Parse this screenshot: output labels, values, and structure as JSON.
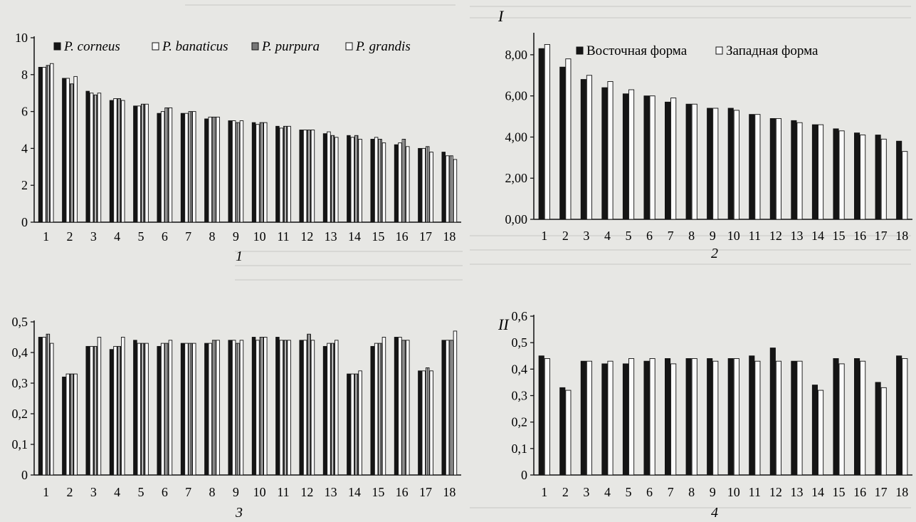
{
  "colors": {
    "paper": "#e7e7e4",
    "ink": "#111111",
    "black_fill": "#151515",
    "white_fill": "#fafafa",
    "hatch_fill": "#8a8a8a"
  },
  "chart_data": [
    {
      "id": "panel-1",
      "type": "bar",
      "panel_label": "1",
      "subpanel_label": "",
      "categories": [
        "1",
        "2",
        "3",
        "4",
        "5",
        "6",
        "7",
        "8",
        "9",
        "10",
        "11",
        "12",
        "13",
        "14",
        "15",
        "16",
        "17",
        "18"
      ],
      "yticks": [
        "0",
        "2",
        "4",
        "6",
        "8",
        "10"
      ],
      "ylim": [
        0,
        10
      ],
      "legend": "top-left",
      "series": [
        {
          "name": "P. corneus",
          "style": "black",
          "values": [
            8.4,
            7.8,
            7.1,
            6.6,
            6.3,
            5.9,
            5.9,
            5.6,
            5.5,
            5.4,
            5.2,
            5.0,
            4.8,
            4.7,
            4.5,
            4.2,
            4.0,
            3.8
          ]
        },
        {
          "name": "P. banaticus",
          "style": "white",
          "values": [
            8.4,
            7.8,
            7.0,
            6.7,
            6.3,
            6.0,
            5.9,
            5.7,
            5.5,
            5.3,
            5.1,
            5.0,
            4.9,
            4.6,
            4.6,
            4.3,
            4.0,
            3.6
          ]
        },
        {
          "name": "P. purpura",
          "style": "hatch",
          "values": [
            8.5,
            7.5,
            6.9,
            6.7,
            6.4,
            6.2,
            6.0,
            5.7,
            5.4,
            5.4,
            5.2,
            5.0,
            4.7,
            4.7,
            4.5,
            4.5,
            4.1,
            3.6
          ]
        },
        {
          "name": "P. grandis",
          "style": "white",
          "values": [
            8.6,
            7.9,
            7.0,
            6.6,
            6.4,
            6.2,
            6.0,
            5.7,
            5.5,
            5.4,
            5.2,
            5.0,
            4.6,
            4.5,
            4.3,
            4.1,
            3.8,
            3.4
          ]
        }
      ]
    },
    {
      "id": "panel-2",
      "type": "bar",
      "panel_label": "2",
      "subpanel_label": "I",
      "categories": [
        "1",
        "2",
        "3",
        "4",
        "5",
        "6",
        "7",
        "8",
        "9",
        "10",
        "11",
        "12",
        "13",
        "14",
        "15",
        "16",
        "17",
        "18"
      ],
      "yticks": [
        "0,00",
        "2,00",
        "4,00",
        "6,00",
        "8,00"
      ],
      "ylim": [
        0,
        9
      ],
      "legend": "top-right",
      "series": [
        {
          "name": "Восточная форма",
          "style": "black",
          "values": [
            8.3,
            7.4,
            6.8,
            6.4,
            6.1,
            6.0,
            5.7,
            5.6,
            5.4,
            5.4,
            5.1,
            4.9,
            4.8,
            4.6,
            4.4,
            4.2,
            4.1,
            3.8
          ]
        },
        {
          "name": "Западная форма",
          "style": "white",
          "values": [
            8.5,
            7.8,
            7.0,
            6.7,
            6.3,
            6.0,
            5.9,
            5.6,
            5.4,
            5.3,
            5.1,
            4.9,
            4.7,
            4.6,
            4.3,
            4.1,
            3.9,
            3.3
          ]
        }
      ]
    },
    {
      "id": "panel-3",
      "type": "bar",
      "panel_label": "3",
      "subpanel_label": "",
      "categories": [
        "1",
        "2",
        "3",
        "4",
        "5",
        "6",
        "7",
        "8",
        "9",
        "10",
        "11",
        "12",
        "13",
        "14",
        "15",
        "16",
        "17",
        "18"
      ],
      "yticks": [
        "0",
        "0,1",
        "0,2",
        "0,3",
        "0,4",
        "0,5"
      ],
      "ylim": [
        0,
        0.5
      ],
      "legend": "none",
      "series": [
        {
          "name": "P. corneus",
          "style": "black",
          "values": [
            0.45,
            0.32,
            0.42,
            0.41,
            0.44,
            0.42,
            0.43,
            0.43,
            0.44,
            0.45,
            0.45,
            0.44,
            0.42,
            0.33,
            0.42,
            0.45,
            0.34,
            0.44
          ]
        },
        {
          "name": "P. banaticus",
          "style": "white",
          "values": [
            0.45,
            0.33,
            0.42,
            0.42,
            0.43,
            0.43,
            0.43,
            0.43,
            0.44,
            0.44,
            0.44,
            0.44,
            0.43,
            0.33,
            0.43,
            0.45,
            0.34,
            0.44
          ]
        },
        {
          "name": "P. purpura",
          "style": "hatch",
          "values": [
            0.46,
            0.33,
            0.42,
            0.42,
            0.43,
            0.43,
            0.43,
            0.44,
            0.43,
            0.45,
            0.44,
            0.46,
            0.43,
            0.33,
            0.43,
            0.44,
            0.35,
            0.44
          ]
        },
        {
          "name": "P. grandis",
          "style": "white",
          "values": [
            0.43,
            0.33,
            0.45,
            0.45,
            0.43,
            0.44,
            0.43,
            0.44,
            0.44,
            0.45,
            0.44,
            0.44,
            0.44,
            0.34,
            0.45,
            0.44,
            0.34,
            0.47
          ]
        }
      ]
    },
    {
      "id": "panel-4",
      "type": "bar",
      "panel_label": "4",
      "subpanel_label": "II",
      "categories": [
        "1",
        "2",
        "3",
        "4",
        "5",
        "6",
        "7",
        "8",
        "9",
        "10",
        "11",
        "12",
        "13",
        "14",
        "15",
        "16",
        "17",
        "18"
      ],
      "yticks": [
        "0",
        "0,1",
        "0,2",
        "0,3",
        "0,4",
        "0,5",
        "0,6"
      ],
      "ylim": [
        0,
        0.6
      ],
      "legend": "none",
      "series": [
        {
          "name": "Восточная форма",
          "style": "black",
          "values": [
            0.45,
            0.33,
            0.43,
            0.42,
            0.42,
            0.43,
            0.44,
            0.44,
            0.44,
            0.44,
            0.45,
            0.48,
            0.43,
            0.34,
            0.44,
            0.44,
            0.35,
            0.45
          ]
        },
        {
          "name": "Западная форма",
          "style": "white",
          "values": [
            0.44,
            0.32,
            0.43,
            0.43,
            0.44,
            0.44,
            0.42,
            0.44,
            0.43,
            0.44,
            0.43,
            0.43,
            0.43,
            0.32,
            0.42,
            0.43,
            0.33,
            0.44
          ]
        }
      ]
    }
  ]
}
